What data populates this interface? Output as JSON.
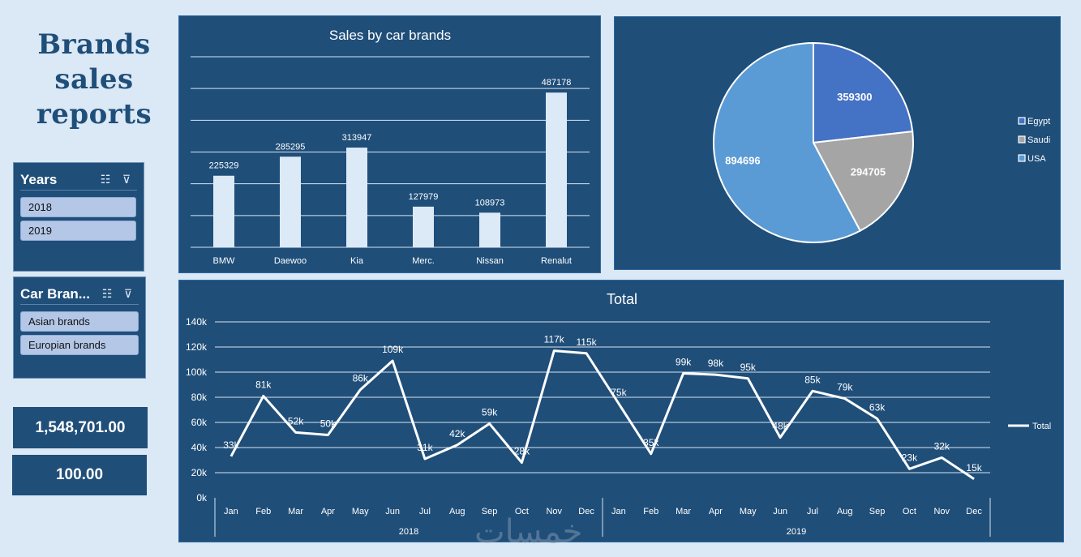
{
  "title_lines": [
    "Brands",
    "sales",
    "reports"
  ],
  "slicers": {
    "years": {
      "title": "Years",
      "items": [
        "2018",
        "2019"
      ]
    },
    "brands": {
      "title": "Car Bran...",
      "items": [
        "Asian brands",
        "Europian brands"
      ]
    }
  },
  "icons": {
    "multi_select": "multi-select-icon",
    "clear_filter": "clear-filter-icon"
  },
  "kpis": {
    "total": "1,548,701.00",
    "percent": "100.00"
  },
  "watermark": "خمسات",
  "colors": {
    "background": "#dbe8f5",
    "panel": "#1f4e79",
    "bar": "#dce9f7",
    "pie_egypt": "#4472c4",
    "pie_saudi": "#a5a5a5",
    "pie_usa": "#5b9bd5",
    "line": "#ffffff"
  },
  "chart_data": [
    {
      "type": "bar",
      "title": "Sales by car brands",
      "categories": [
        "BMW",
        "Daewoo",
        "Kia",
        "Merc.",
        "Nissan",
        "Renalut"
      ],
      "values": [
        225329,
        285295,
        313947,
        127979,
        108973,
        487178
      ],
      "data_labels": [
        "225329",
        "285295",
        "313947",
        "127979",
        "108973",
        "487178"
      ],
      "ylim": [
        0,
        600000
      ],
      "grid": true
    },
    {
      "type": "pie",
      "labels": [
        "Egypt",
        "Saudi",
        "USA"
      ],
      "values": [
        359300,
        294705,
        894696
      ],
      "data_labels": [
        "359300",
        "294705",
        "894696"
      ],
      "legend": "right"
    },
    {
      "type": "line",
      "title": "Total",
      "series": [
        {
          "name": "Total",
          "values": [
            33,
            81,
            52,
            50,
            86,
            109,
            31,
            42,
            59,
            28,
            117,
            115,
            75,
            35,
            99,
            98,
            95,
            48,
            85,
            79,
            63,
            23,
            32,
            15
          ],
          "data_labels": [
            "33k",
            "81k",
            "52k",
            "50k",
            "86k",
            "109k",
            "31k",
            "42k",
            "59k",
            "28k",
            "117k",
            "115k",
            "75k",
            "35k",
            "99k",
            "98k",
            "95k",
            "48k",
            "85k",
            "79k",
            "63k",
            "23k",
            "32k",
            "15k"
          ]
        }
      ],
      "x_months": [
        "Jan",
        "Feb",
        "Mar",
        "Apr",
        "May",
        "Jun",
        "Jul",
        "Aug",
        "Sep",
        "Oct",
        "Nov",
        "Dec",
        "Jan",
        "Feb",
        "Mar",
        "Apr",
        "May",
        "Jun",
        "Jul",
        "Aug",
        "Sep",
        "Oct",
        "Nov",
        "Dec"
      ],
      "x_groups": [
        "2018",
        "2019"
      ],
      "y_ticks": [
        "0k",
        "20k",
        "40k",
        "60k",
        "80k",
        "100k",
        "120k",
        "140k"
      ],
      "ylim": [
        0,
        140
      ],
      "unit": "k",
      "legend": "right",
      "grid": true
    }
  ]
}
